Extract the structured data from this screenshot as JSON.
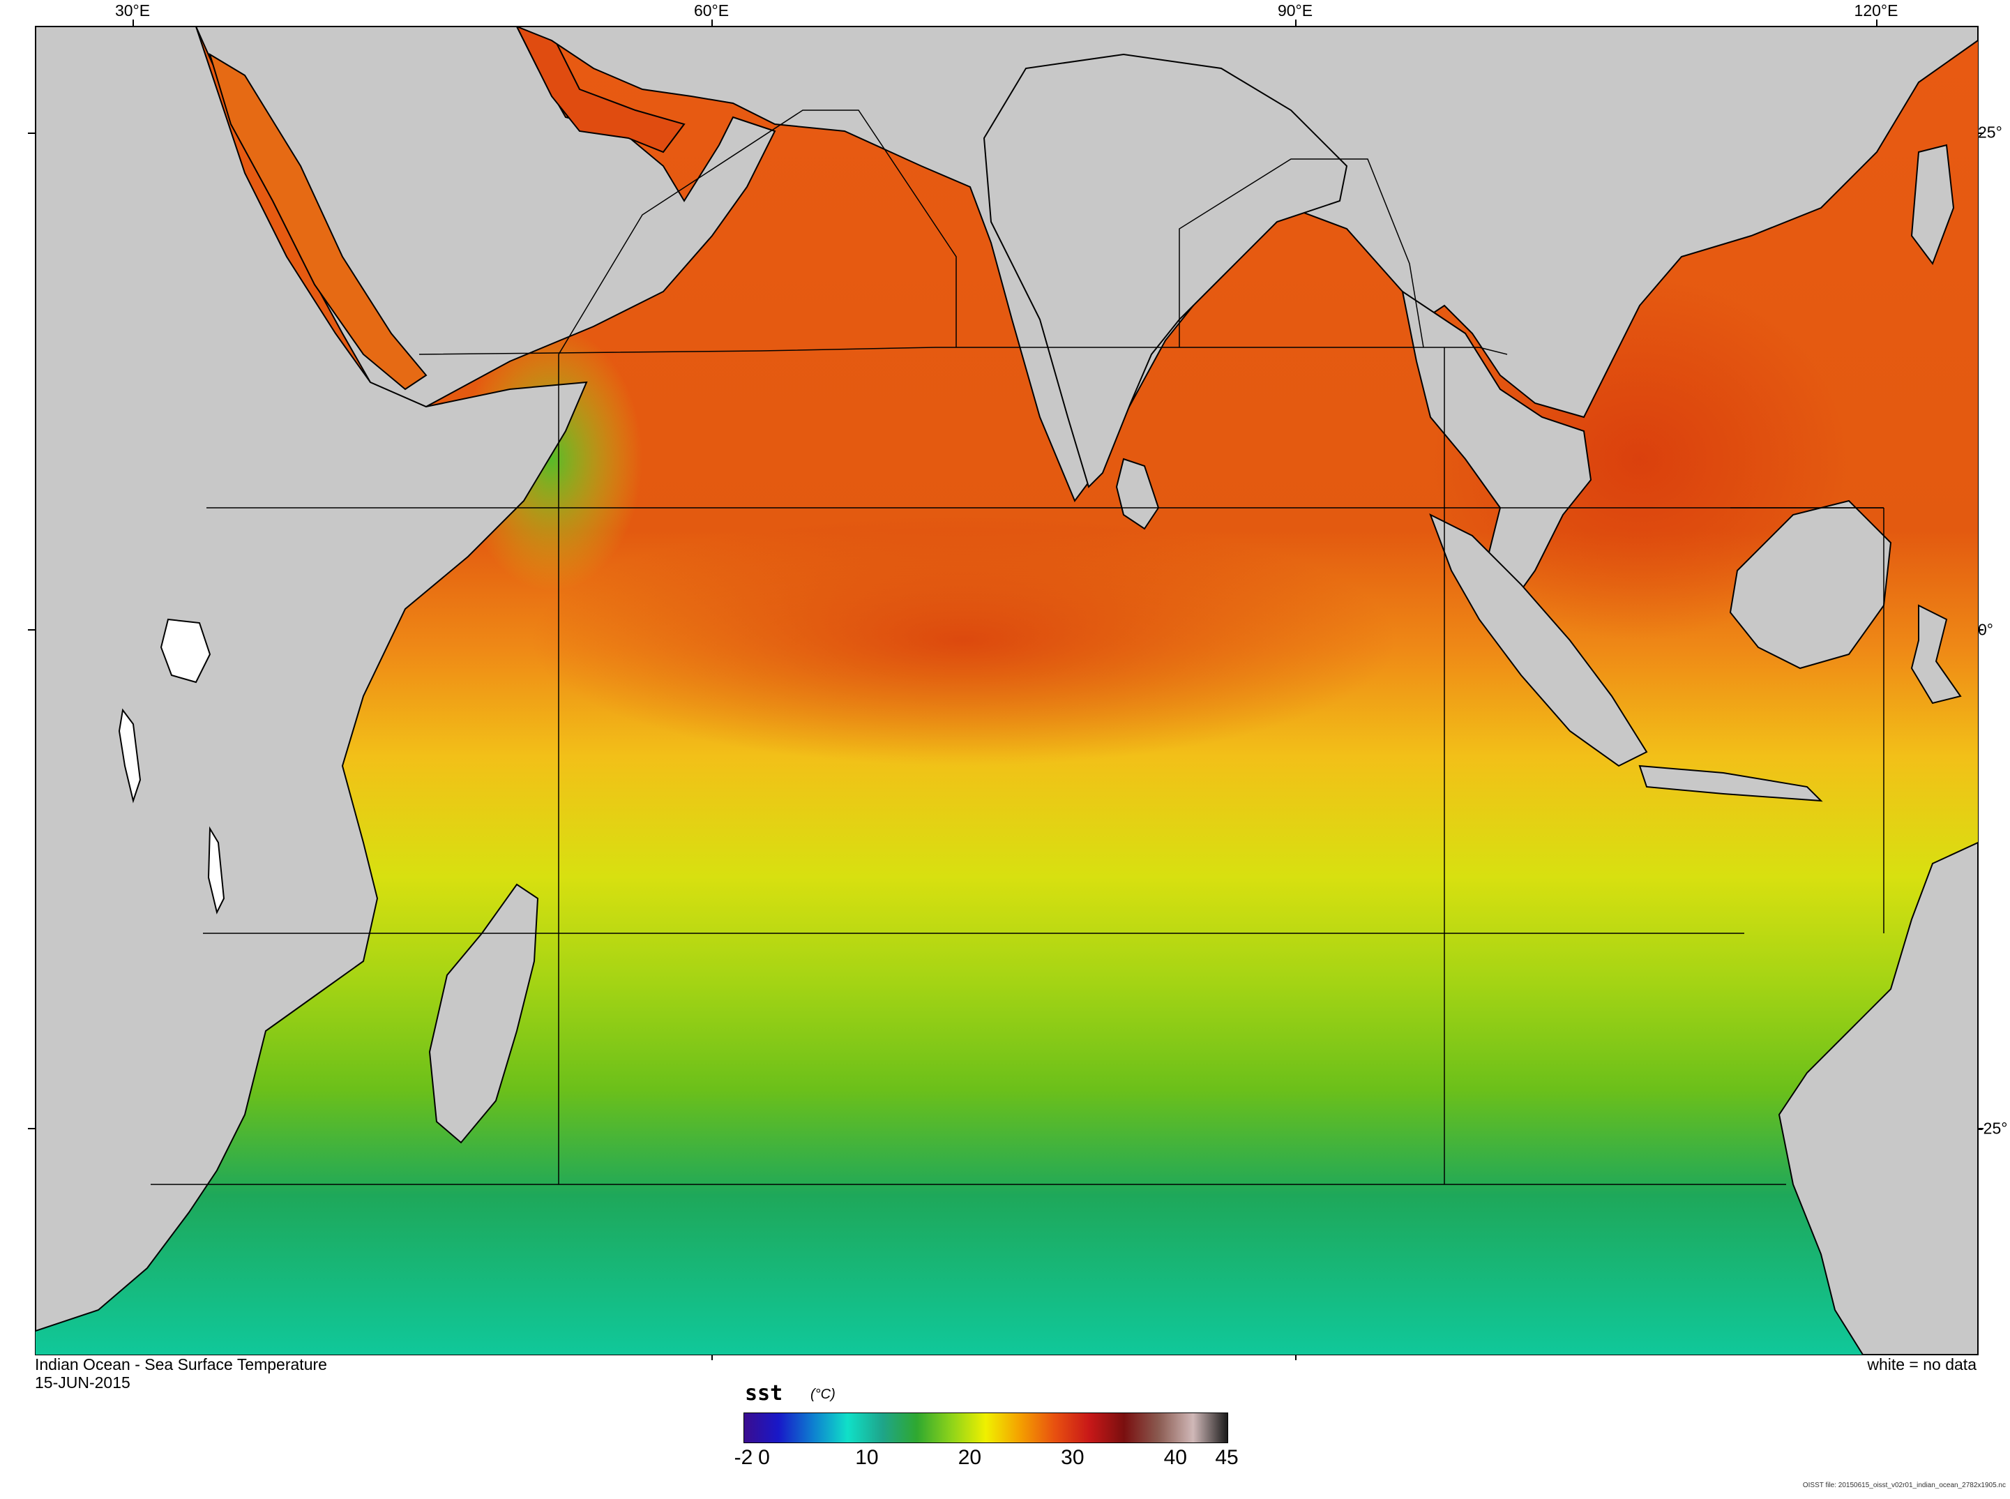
{
  "map": {
    "title": "Indian Ocean - Sea Surface Temperature",
    "date": "15-JUN-2015",
    "no_data_note": "white = no data",
    "file_note": "OISST file: 20150615_oisst_v02r01_indian_ocean_2782x1905.nc",
    "longitude_labels": [
      "30°E",
      "60°E",
      "90°E",
      "120°E"
    ],
    "latitude_labels": [
      "25°",
      "0°",
      "-25°"
    ],
    "land_color": "#c8c8c8",
    "no_data_color": "#ffffff"
  },
  "colorbar": {
    "variable": "sst",
    "units": "(°C)",
    "tick_labels": [
      "-2",
      "0",
      "10",
      "20",
      "30",
      "40",
      "45"
    ],
    "range": [
      -2,
      45
    ],
    "colors": [
      "#3a0d8f",
      "#1818c8",
      "#0e7fd0",
      "#10e0c8",
      "#1ea58a",
      "#2fa830",
      "#8ed31a",
      "#f0f000",
      "#f4a000",
      "#e85010",
      "#c81818",
      "#7a0f0f",
      "#8a5a50",
      "#d0b8b8",
      "#1a1a1a"
    ]
  }
}
